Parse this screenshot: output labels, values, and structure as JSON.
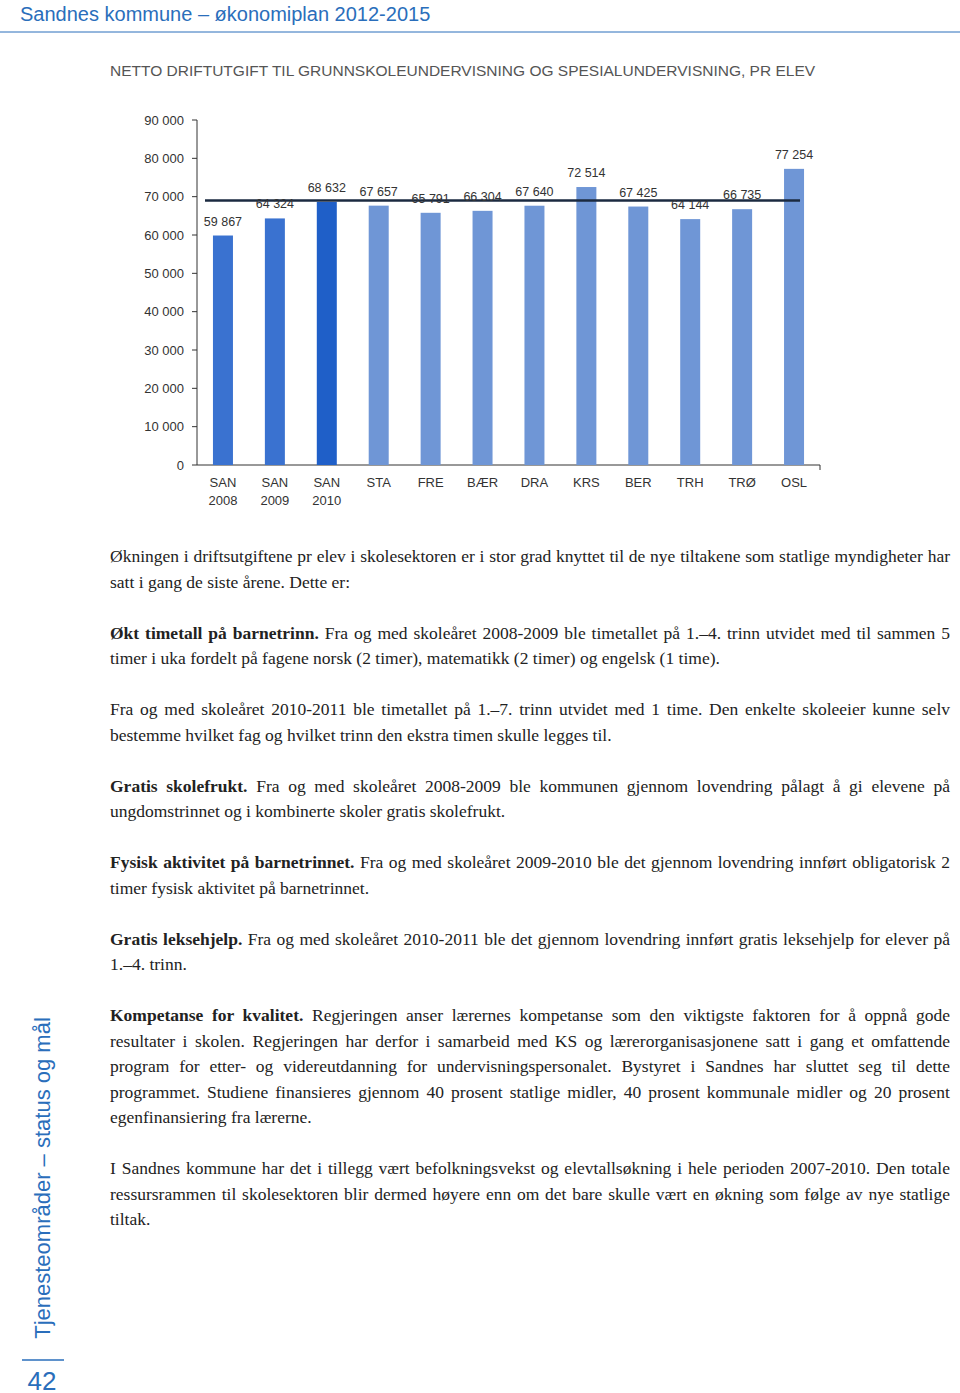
{
  "header": {
    "title": "Sandnes kommune – økonomiplan 2012-2015"
  },
  "chart_data": {
    "type": "bar",
    "title": "NETTO DRIFTUTGIFT TIL GRUNNSKOLEUNDERVISNING OG SPESIALUNDERVISNING, PR ELEV",
    "categories": [
      "SAN 2008",
      "SAN 2009",
      "SAN 2010",
      "STA",
      "FRE",
      "BÆR",
      "DRA",
      "KRS",
      "BER",
      "TRH",
      "TRØ",
      "OSL"
    ],
    "values": [
      59867,
      64324,
      68632,
      67657,
      65791,
      66304,
      67640,
      72514,
      67425,
      64144,
      66735,
      77254
    ],
    "value_labels": [
      "59 867",
      "64 324",
      "68 632",
      "67 657",
      "65 791",
      "66 304",
      "67 640",
      "72 514",
      "67 425",
      "64 144",
      "66 735",
      "77 254"
    ],
    "colors": [
      "#3a72d0",
      "#3a72d0",
      "#1f5fc8",
      "#6f96d6",
      "#6f96d6",
      "#6f96d6",
      "#6f96d6",
      "#6f96d6",
      "#6f96d6",
      "#6f96d6",
      "#6f96d6",
      "#6f96d6"
    ],
    "average": 69000,
    "ylim": [
      0,
      90000
    ],
    "yticks": [
      0,
      {
        "value": 10000,
        "label": "10 000"
      },
      {
        "value": 20000,
        "label": "20 000"
      },
      {
        "value": 30000,
        "label": "30 000"
      },
      {
        "value": 40000,
        "label": "40 000"
      },
      {
        "value": 50000,
        "label": "50 000"
      },
      {
        "value": 60000,
        "label": "60 000"
      },
      {
        "value": 70000,
        "label": "70 000"
      },
      {
        "value": 80000,
        "label": "80 000"
      },
      {
        "value": 90000,
        "label": "90 000"
      }
    ],
    "grid": false,
    "data_labels": true
  },
  "body": [
    {
      "text": "Økningen i driftsutgiftene pr elev i skolesektoren er i stor grad knyttet til de nye tiltakene som statlige myndigheter har satt i gang de siste årene. Dette er:"
    },
    {
      "bold": "Økt timetall på barnetrinn.",
      "text": "Fra og med skoleåret 2008-2009 ble timetallet på 1.–4. trinn utvidet med til sammen 5 timer i uka fordelt på fagene norsk (2 timer), matematikk (2 timer) og engelsk (1 time)."
    },
    {
      "text": "Fra og med skoleåret 2010-2011 ble timetallet på 1.–7. trinn utvidet med 1 time. Den enkelte skoleeier kunne selv bestemme hvilket fag og hvilket trinn den ekstra timen skulle legges til."
    },
    {
      "bold": "Gratis skolefrukt.",
      "text": "Fra og med skoleåret 2008-2009 ble kommunen gjennom lovendring pålagt å gi elevene på ungdomstrinnet og i kombinerte skoler gratis skolefrukt."
    },
    {
      "bold": "Fysisk aktivitet på barnetrinnet.",
      "text": "Fra og med skoleåret 2009-2010 ble det gjennom lovendring innført obligatorisk 2 timer fysisk aktivitet på barnetrinnet."
    },
    {
      "bold": "Gratis leksehjelp.",
      "text": "Fra og med skoleåret 2010-2011 ble det gjennom lovendring innført gratis leksehjelp for elever på 1.–4. trinn."
    },
    {
      "bold": "Kompetanse for kvalitet.",
      "text": "Regjeringen anser lærernes kompetanse som den viktigste faktoren for å oppnå gode resultater i skolen. Regjeringen har derfor i samarbeid med KS og lærerorganisasjonene satt i gang et omfattende program for etter- og videreutdanning for undervisningspersonalet. Bystyret i Sandnes har sluttet seg til dette programmet. Studiene finansieres gjennom 40 prosent statlige midler, 40 prosent kommunale midler og 20 prosent egenfinansiering fra lærerne."
    },
    {
      "text": "I Sandnes kommune har det i tillegg vært befolkningsvekst og elevtallsøkning i hele perioden 2007-2010. Den totale ressursrammen til skolesektoren blir dermed høyere enn om det bare skulle vært en økning som følge av nye statlige tiltak."
    }
  ],
  "sidebar": {
    "label": "Tjenesteområder – status og mål",
    "page": "42"
  }
}
